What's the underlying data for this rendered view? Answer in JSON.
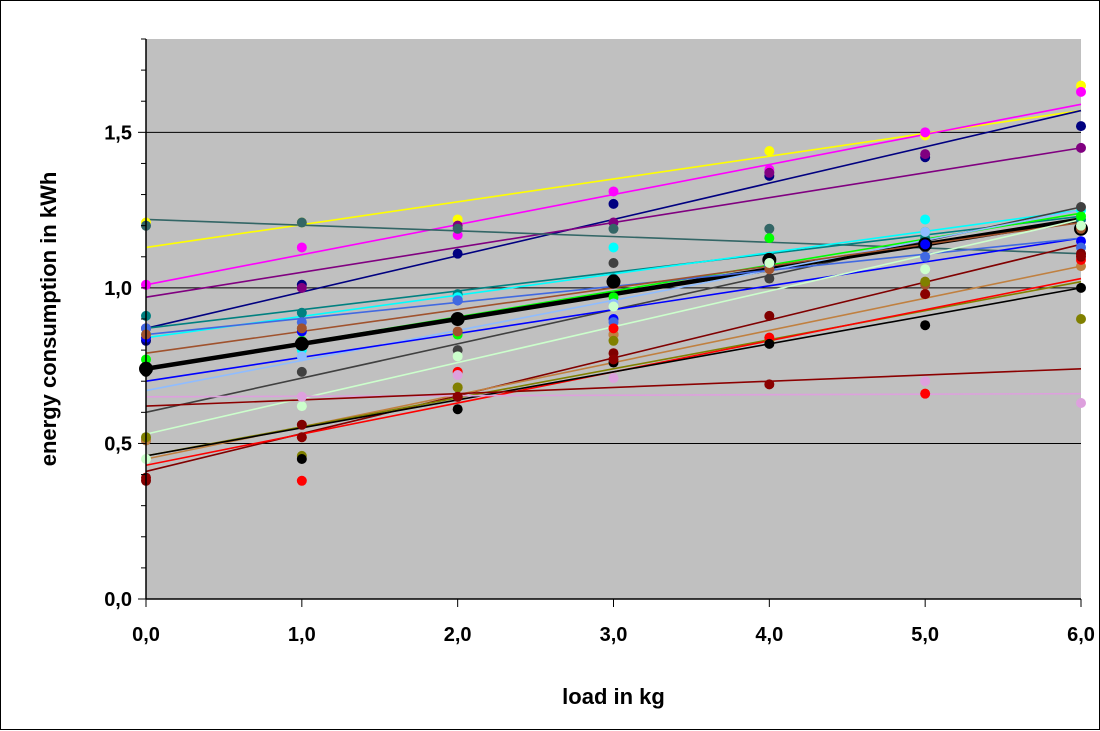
{
  "chart_data": {
    "type": "scatter",
    "title": "",
    "xlabel": "load in kg",
    "ylabel": "energy consumption in kWh",
    "xlim": [
      0,
      6
    ],
    "ylim": [
      0,
      1.8
    ],
    "x_ticks": [
      "0,0",
      "1,0",
      "2,0",
      "3,0",
      "4,0",
      "5,0",
      "6,0"
    ],
    "y_ticks": [
      "0,0",
      "0,5",
      "1,0",
      "1,5"
    ],
    "y_tick_values": [
      0,
      0.5,
      1.0,
      1.5
    ],
    "grid": "horizontal",
    "background": "#c0c0c0",
    "series": [
      {
        "color": "#ffff00",
        "x": [
          0,
          1,
          2,
          4,
          5,
          6
        ],
        "y": [
          1.21,
          1.21,
          1.22,
          1.44,
          1.49,
          1.65
        ],
        "trend": [
          1.13,
          1.57
        ]
      },
      {
        "color": "#ff00ff",
        "x": [
          0,
          1,
          2,
          3,
          4,
          5,
          6
        ],
        "y": [
          1.01,
          1.13,
          1.17,
          1.31,
          1.38,
          1.5,
          1.63
        ],
        "trend": [
          1.01,
          1.59
        ]
      },
      {
        "color": "#000080",
        "x": [
          0,
          1,
          2,
          3,
          4,
          5,
          6
        ],
        "y": [
          0.83,
          1.01,
          1.11,
          1.27,
          1.36,
          1.42,
          1.52
        ],
        "trend": [
          0.87,
          1.57
        ]
      },
      {
        "color": "#800080",
        "x": [
          0,
          1,
          2,
          3,
          4,
          5,
          6
        ],
        "y": [
          0.87,
          1.0,
          1.2,
          1.21,
          1.37,
          1.43,
          1.45
        ],
        "trend": [
          0.97,
          1.45
        ]
      },
      {
        "color": "#336666",
        "x": [
          0,
          1,
          2,
          3,
          4,
          5,
          6
        ],
        "y": [
          1.2,
          1.21,
          1.19,
          1.19,
          1.19,
          1.13,
          1.11
        ],
        "trend": [
          1.22,
          1.11
        ]
      },
      {
        "color": "#008080",
        "x": [
          0,
          1,
          2,
          3,
          4,
          5,
          6
        ],
        "y": [
          0.91,
          0.92,
          0.98,
          1.03,
          1.1,
          1.16,
          1.22
        ],
        "trend": [
          0.87,
          1.23
        ]
      },
      {
        "color": "#00ffff",
        "x": [
          0,
          1,
          2,
          3,
          4,
          5,
          6
        ],
        "y": [
          0.85,
          0.8,
          0.97,
          1.13,
          1.1,
          1.22,
          1.25
        ],
        "trend": [
          0.84,
          1.25
        ]
      },
      {
        "color": "#00ff00",
        "x": [
          0,
          1,
          2,
          3,
          4,
          5,
          6
        ],
        "y": [
          0.77,
          0.83,
          0.85,
          0.97,
          1.16,
          1.18,
          1.23
        ],
        "trend": [
          0.74,
          1.24
        ]
      },
      {
        "color": "#404040",
        "x": [
          0,
          1,
          2,
          3,
          4,
          5,
          6
        ],
        "y": [
          0.51,
          0.73,
          0.8,
          1.08,
          1.03,
          1.13,
          1.26
        ],
        "trend": [
          0.6,
          1.26
        ]
      },
      {
        "color": "#000000",
        "x": [
          0,
          1,
          2,
          3,
          4,
          5,
          6
        ],
        "y": [
          0.74,
          0.82,
          0.9,
          1.02,
          1.09,
          1.14,
          1.19
        ],
        "trend": [
          0.74,
          1.22
        ],
        "bold": true
      },
      {
        "color": "#8fbcff",
        "x": [
          0,
          1,
          2,
          3,
          4,
          5,
          6
        ],
        "y": [
          0.52,
          0.78,
          0.96,
          0.95,
          1.08,
          1.18,
          1.15
        ],
        "trend": [
          0.67,
          1.25
        ]
      },
      {
        "color": "#0000ff",
        "x": [
          0,
          1,
          2,
          3,
          4,
          5,
          6
        ],
        "y": [
          0.84,
          0.86,
          0.96,
          0.9,
          1.07,
          1.14,
          1.15
        ],
        "trend": [
          0.7,
          1.16
        ]
      },
      {
        "color": "#4169e1",
        "x": [
          0,
          1,
          2,
          3,
          4,
          5,
          6
        ],
        "y": [
          0.87,
          0.89,
          0.96,
          0.89,
          1.07,
          1.1,
          1.13
        ],
        "trend": [
          0.85,
          1.16
        ]
      },
      {
        "color": "#a0522d",
        "x": [
          0,
          1,
          2,
          3,
          4,
          5,
          6
        ],
        "y": [
          0.85,
          0.87,
          0.86,
          0.85,
          1.06,
          1.01,
          1.19
        ],
        "trend": [
          0.79,
          1.21
        ]
      },
      {
        "color": "#ccffcc",
        "x": [
          0,
          1,
          2,
          3,
          4,
          5,
          6
        ],
        "y": [
          0.45,
          0.62,
          0.78,
          0.94,
          1.08,
          1.06,
          1.2
        ],
        "trend": [
          0.53,
          1.22
        ]
      },
      {
        "color": "#800000",
        "x": [
          0,
          1,
          2,
          3,
          4,
          5,
          6
        ],
        "y": [
          0.38,
          0.56,
          0.65,
          0.79,
          0.91,
          0.98,
          1.11
        ],
        "trend": [
          0.41,
          1.14
        ]
      },
      {
        "color": "#c08040",
        "x": [
          0,
          1,
          2,
          3,
          4,
          5,
          6
        ],
        "y": [
          0.51,
          0.52,
          0.68,
          0.85,
          0.84,
          0.98,
          1.07
        ],
        "trend": [
          0.45,
          1.07
        ]
      },
      {
        "color": "#808000",
        "x": [
          0,
          1,
          2,
          3,
          4,
          5,
          6
        ],
        "y": [
          0.52,
          0.46,
          0.68,
          0.83,
          0.83,
          1.02,
          0.9
        ],
        "trend": [
          0.46,
          1.02
        ]
      },
      {
        "color": "#ff0000",
        "x": [
          1,
          2,
          3,
          4,
          5,
          6
        ],
        "y": [
          0.38,
          0.73,
          0.87,
          0.84,
          0.66,
          1.09
        ],
        "trend": [
          0.43,
          1.03
        ]
      },
      {
        "color": "#000000",
        "x": [
          0,
          1,
          2,
          3,
          4,
          5,
          6
        ],
        "y": [
          0.73,
          0.45,
          0.61,
          0.76,
          0.82,
          0.88,
          1.0
        ],
        "trend": [
          0.46,
          1.0
        ]
      },
      {
        "color": "#dda0dd",
        "x": [
          1,
          2,
          3,
          5,
          6
        ],
        "y": [
          0.65,
          0.72,
          0.71,
          0.7,
          0.63
        ],
        "trend": [
          0.65,
          0.66
        ]
      },
      {
        "color": "#8b0000",
        "x": [
          0,
          1,
          2,
          3,
          4,
          5,
          6
        ],
        "y": [
          0.39,
          0.52,
          0.65,
          0.77,
          0.69,
          0.98,
          1.1
        ],
        "trend": [
          0.62,
          0.74
        ]
      }
    ]
  }
}
